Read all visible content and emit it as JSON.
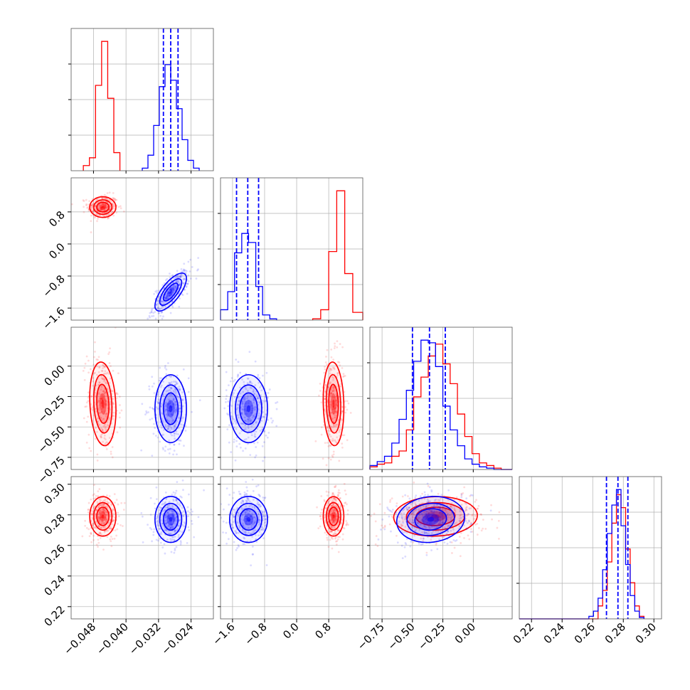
{
  "chart_data": {
    "type": "corner",
    "grid": true,
    "legend": "none",
    "series": [
      {
        "color": "#ff0000"
      },
      {
        "color": "#0000ff"
      }
    ],
    "parameters": [
      {
        "range": [
          -0.0535,
          -0.0185
        ],
        "ticks": [
          -0.048,
          -0.04,
          -0.032,
          -0.024
        ],
        "tick_labels": [
          "−0.048",
          "−0.040",
          "−0.032",
          "−0.024"
        ],
        "red": {
          "mean": -0.0457,
          "sd": 0.0015
        },
        "blue": {
          "mean": -0.029,
          "sd": 0.0018
        },
        "quantiles_blue": [
          -0.0308,
          -0.029,
          -0.0272
        ],
        "hist_red": {
          "edges": [
            -0.0505,
            -0.049,
            -0.0475,
            -0.046,
            -0.0445,
            -0.043,
            -0.0415
          ],
          "counts": [
            0.04,
            0.1,
            0.66,
            1.0,
            0.56,
            0.14
          ]
        },
        "hist_blue": {
          "edges": [
            -0.036,
            -0.0346,
            -0.0332,
            -0.0318,
            -0.0304,
            -0.029,
            -0.0276,
            -0.0262,
            -0.0248,
            -0.0234,
            -0.022
          ],
          "counts": [
            0.02,
            0.12,
            0.35,
            0.65,
            0.82,
            0.7,
            0.48,
            0.24,
            0.08,
            0.02
          ]
        }
      },
      {
        "range": [
          -1.9,
          1.65
        ],
        "ticks": [
          -1.6,
          -0.8,
          0.0,
          0.8
        ],
        "tick_labels": [
          "−1.6",
          "−0.8",
          "0.0",
          "0.8"
        ],
        "red": {
          "mean": 0.92,
          "sd": 0.12
        },
        "blue": {
          "mean": -1.2,
          "sd": 0.22
        },
        "quantiles_blue": [
          -1.5,
          -1.22,
          -0.95
        ],
        "hist_red": {
          "edges": [
            0.4,
            0.6,
            0.8,
            1.0,
            1.2,
            1.4,
            1.65
          ],
          "counts": [
            0.01,
            0.08,
            0.53,
            1.0,
            0.36,
            0.06
          ]
        },
        "hist_blue": {
          "edges": [
            -1.9,
            -1.72,
            -1.55,
            -1.37,
            -1.2,
            -1.02,
            -0.85,
            -0.67,
            -0.5
          ],
          "counts": [
            0.08,
            0.22,
            0.52,
            0.67,
            0.6,
            0.26,
            0.04,
            0.01
          ]
        }
      },
      {
        "range": [
          -0.85,
          0.32
        ],
        "ticks": [
          -0.75,
          -0.5,
          -0.25,
          0.0
        ],
        "tick_labels": [
          "−0.75",
          "−0.50",
          "−0.25",
          "0.00"
        ],
        "red": {
          "mean": -0.31,
          "sd": 0.16
        },
        "blue": {
          "mean": -0.35,
          "sd": 0.13
        },
        "quantiles_blue": [
          -0.5,
          -0.36,
          -0.23
        ],
        "hist_red": {
          "edges": [
            -0.85,
            -0.79,
            -0.73,
            -0.67,
            -0.61,
            -0.55,
            -0.49,
            -0.43,
            -0.37,
            -0.31,
            -0.25,
            -0.19,
            -0.13,
            -0.07,
            -0.01,
            0.05,
            0.11,
            0.17,
            0.23,
            0.32
          ],
          "counts": [
            0.02,
            0.04,
            0.05,
            0.1,
            0.14,
            0.3,
            0.55,
            0.7,
            0.86,
            0.95,
            0.8,
            0.65,
            0.42,
            0.25,
            0.12,
            0.05,
            0.03,
            0.01,
            0.0
          ]
        },
        "hist_blue": {
          "edges": [
            -0.85,
            -0.79,
            -0.73,
            -0.67,
            -0.61,
            -0.55,
            -0.49,
            -0.43,
            -0.37,
            -0.31,
            -0.25,
            -0.19,
            -0.13,
            -0.07,
            -0.01,
            0.05,
            0.11,
            0.17,
            0.23,
            0.32
          ],
          "counts": [
            0.03,
            0.06,
            0.1,
            0.2,
            0.38,
            0.6,
            0.82,
            0.98,
            0.96,
            0.78,
            0.48,
            0.3,
            0.18,
            0.08,
            0.04,
            0.02,
            0.01,
            0.0,
            0.0
          ]
        }
      },
      {
        "range": [
          0.212,
          0.305
        ],
        "ticks": [
          0.22,
          0.24,
          0.26,
          0.28,
          0.3
        ],
        "tick_labels": [
          "0.22",
          "0.24",
          "0.26",
          "0.28",
          "0.30"
        ],
        "red": {
          "mean": 0.279,
          "sd": 0.006
        },
        "blue": {
          "mean": 0.277,
          "sd": 0.007
        },
        "quantiles_blue": [
          0.269,
          0.2765,
          0.283
        ],
        "hist_red": {
          "edges": [
            0.212,
            0.2635,
            0.2665,
            0.2695,
            0.2725,
            0.2755,
            0.2785,
            0.2815,
            0.2845,
            0.2875,
            0.2905,
            0.2935
          ],
          "counts": [
            0.0,
            0.1,
            0.22,
            0.44,
            0.74,
            0.96,
            0.86,
            0.54,
            0.28,
            0.1,
            0.02
          ]
        },
        "hist_blue": {
          "edges": [
            0.212,
            0.2575,
            0.2605,
            0.2635,
            0.2665,
            0.2695,
            0.2725,
            0.2755,
            0.2785,
            0.2815,
            0.2845,
            0.2875,
            0.2905,
            0.2935
          ],
          "counts": [
            0.0,
            0.02,
            0.06,
            0.16,
            0.38,
            0.66,
            0.88,
            1.0,
            0.72,
            0.42,
            0.18,
            0.06,
            0.01
          ]
        }
      }
    ],
    "correlations": {
      "0-1": {
        "red": 0.0,
        "blue": 0.72
      },
      "0-2": {
        "red": -0.15,
        "blue": 0.0
      },
      "1-2": {
        "red": -0.1,
        "blue": 0.0
      },
      "0-3": {
        "red": 0.0,
        "blue": 0.0
      },
      "1-3": {
        "red": 0.0,
        "blue": 0.0
      },
      "2-3": {
        "red": 0.05,
        "blue": 0.1
      }
    }
  }
}
